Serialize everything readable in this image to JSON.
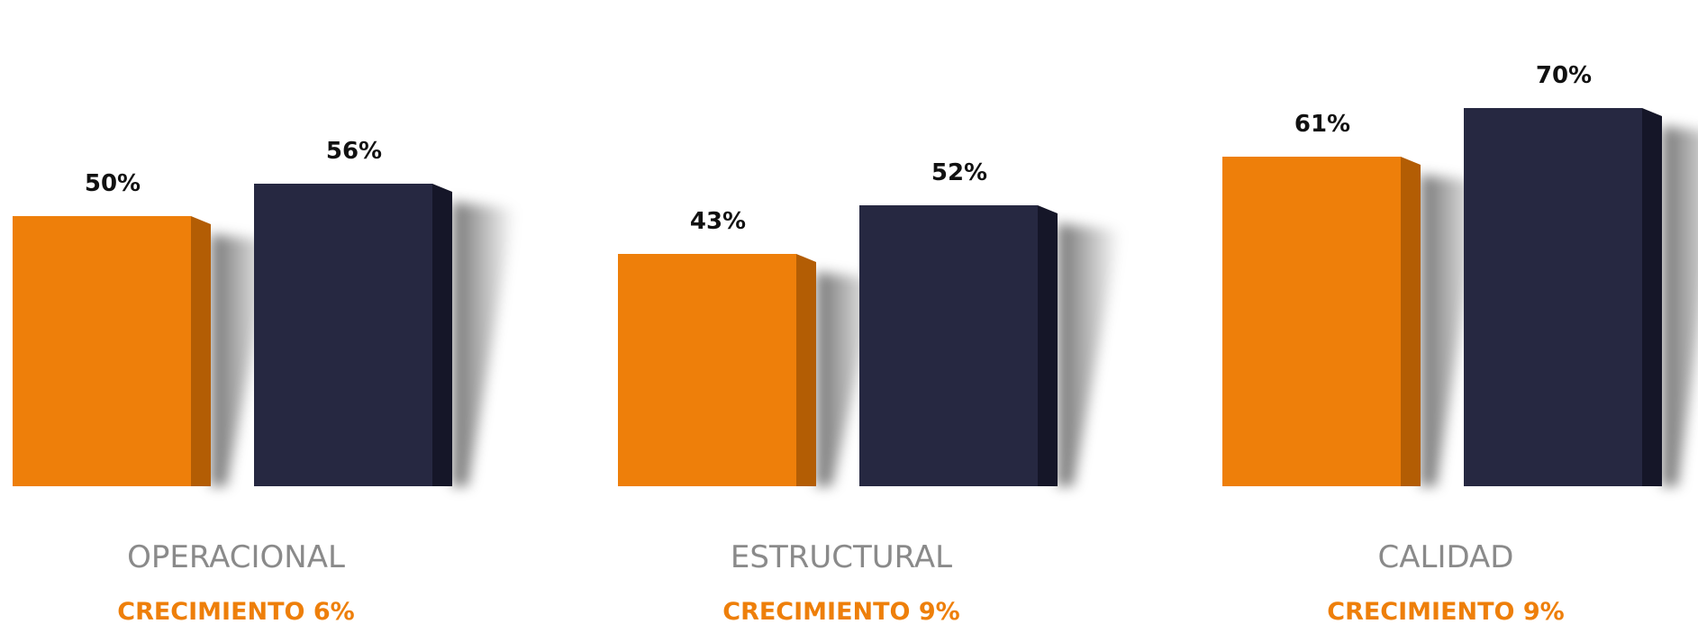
{
  "colors": {
    "series_a": "#ee7f0a",
    "series_a_side": "#b35d04",
    "series_b": "#262841",
    "series_b_side": "#151628",
    "growth_text": "#ee7f0a",
    "category_text": "#8a8a8a"
  },
  "chart_data": {
    "type": "bar",
    "categories": [
      "OPERACIONAL",
      "ESTRUCTURAL",
      "CALIDAD"
    ],
    "series": [
      {
        "values": [
          50,
          43,
          61
        ],
        "labels": [
          "50%",
          "43%",
          "61%"
        ]
      },
      {
        "values": [
          56,
          52,
          70
        ],
        "labels": [
          "56%",
          "52%",
          "70%"
        ]
      }
    ],
    "growth_labels": [
      "CRECIMIENTO 6%",
      "CRECIMIENTO 9%",
      "CRECIMIENTO 9%"
    ],
    "ylim": [
      0,
      100
    ],
    "grid": false,
    "legend": "none"
  }
}
